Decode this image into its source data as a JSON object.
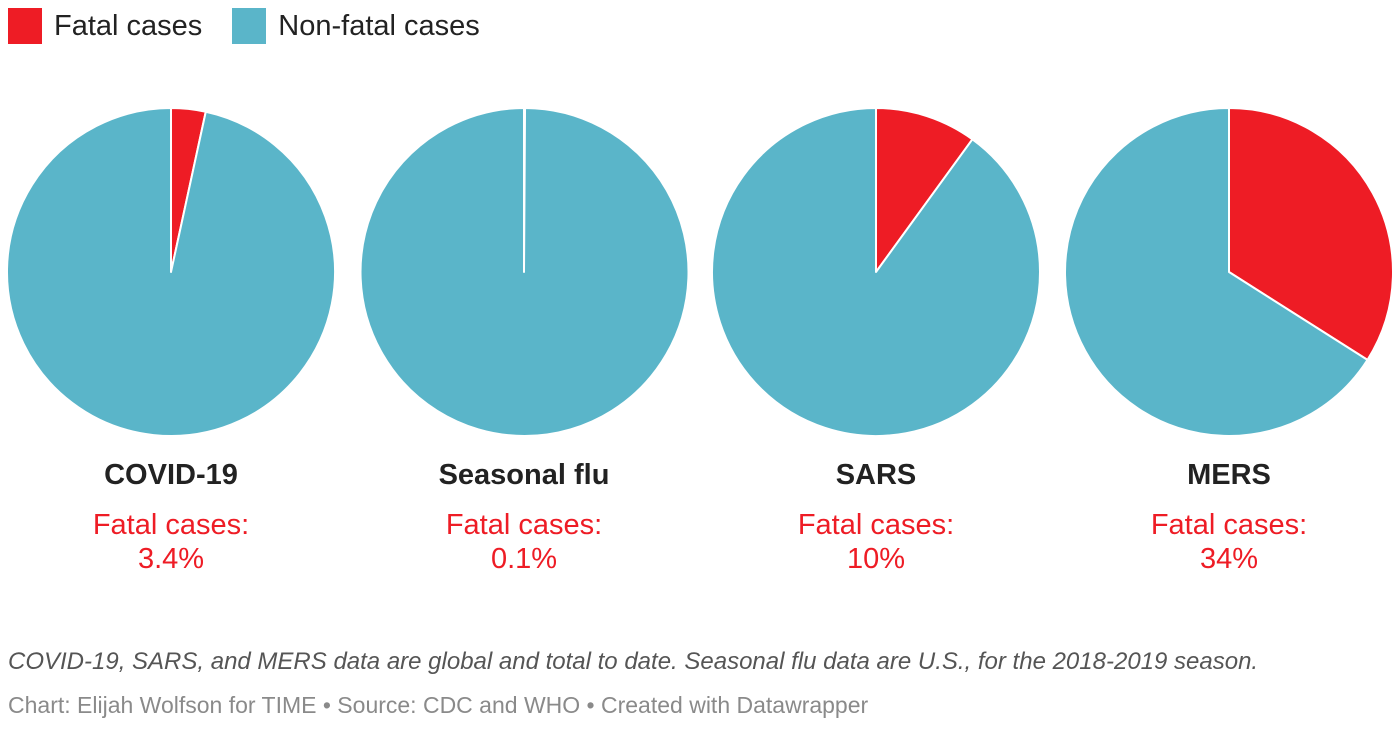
{
  "legend": {
    "items": [
      {
        "label": "Fatal cases",
        "color": "#ee1c25"
      },
      {
        "label": "Non-fatal cases",
        "color": "#5ab5c9"
      }
    ]
  },
  "chart_data": [
    {
      "type": "pie",
      "title": "COVID-19",
      "fatal_label": "Fatal cases:",
      "fatal_text": "3.4%",
      "slices": [
        {
          "name": "Fatal cases",
          "value": 3.4
        },
        {
          "name": "Non-fatal cases",
          "value": 96.6
        }
      ]
    },
    {
      "type": "pie",
      "title": "Seasonal flu",
      "fatal_label": "Fatal cases:",
      "fatal_text": "0.1%",
      "slices": [
        {
          "name": "Fatal cases",
          "value": 0.1
        },
        {
          "name": "Non-fatal cases",
          "value": 99.9
        }
      ]
    },
    {
      "type": "pie",
      "title": "SARS",
      "fatal_label": "Fatal cases:",
      "fatal_text": "10%",
      "slices": [
        {
          "name": "Fatal cases",
          "value": 10
        },
        {
          "name": "Non-fatal cases",
          "value": 90
        }
      ]
    },
    {
      "type": "pie",
      "title": "MERS",
      "fatal_label": "Fatal cases:",
      "fatal_text": "34%",
      "slices": [
        {
          "name": "Fatal cases",
          "value": 34
        },
        {
          "name": "Non-fatal cases",
          "value": 66
        }
      ]
    }
  ],
  "colors": {
    "fatal": "#ee1c25",
    "nonfatal": "#5ab5c9"
  },
  "footer": {
    "note": "COVID-19, SARS, and MERS data are global and total to date. Seasonal flu data are U.S., for the 2018-2019 season.",
    "credit": "Chart: Elijah Wolfson for TIME • Source: CDC and WHO • Created with Datawrapper"
  }
}
